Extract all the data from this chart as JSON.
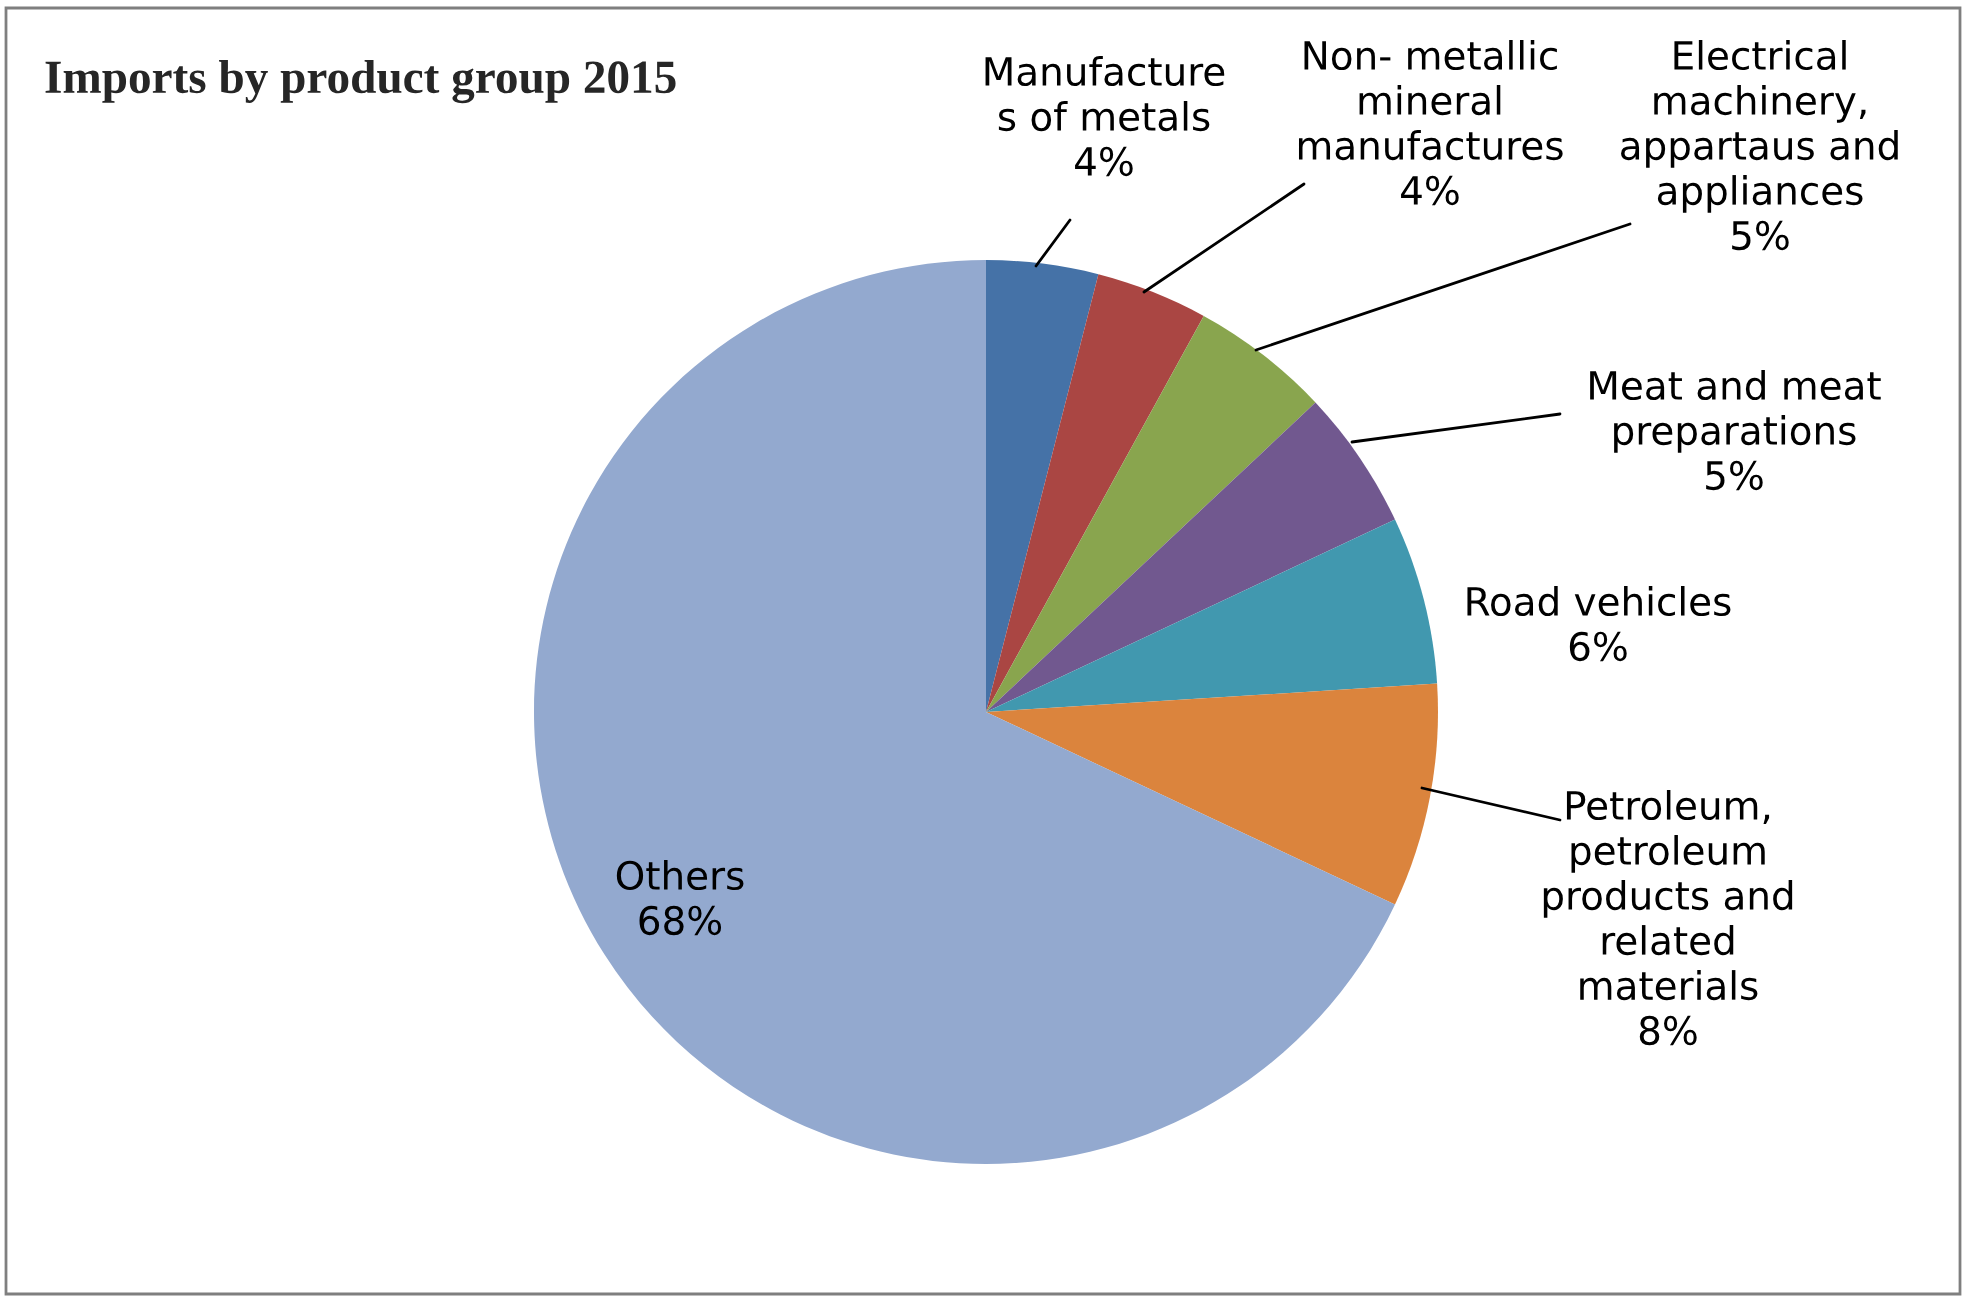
{
  "chart_data": {
    "type": "pie",
    "title": "Imports by product group 2015",
    "categories": [
      "Manufacture\ns of metals",
      "Non- metallic\nmineral\nmanufactures",
      "Electrical\nmachinery,\nappartaus and\nappliances",
      "Meat and meat\npreparations",
      "Road vehicles",
      "Petroleum,\npetroleum\nproducts and\nrelated\nmaterials",
      "Others"
    ],
    "values": [
      4,
      4,
      5,
      5,
      6,
      8,
      68
    ],
    "value_labels": [
      "4%",
      "4%",
      "5%",
      "5%",
      "6%",
      "8%",
      "68%"
    ],
    "colors": [
      "#4572a7",
      "#aa4643",
      "#89a54e",
      "#71588f",
      "#4198af",
      "#db843d",
      "#93a9cf"
    ]
  }
}
